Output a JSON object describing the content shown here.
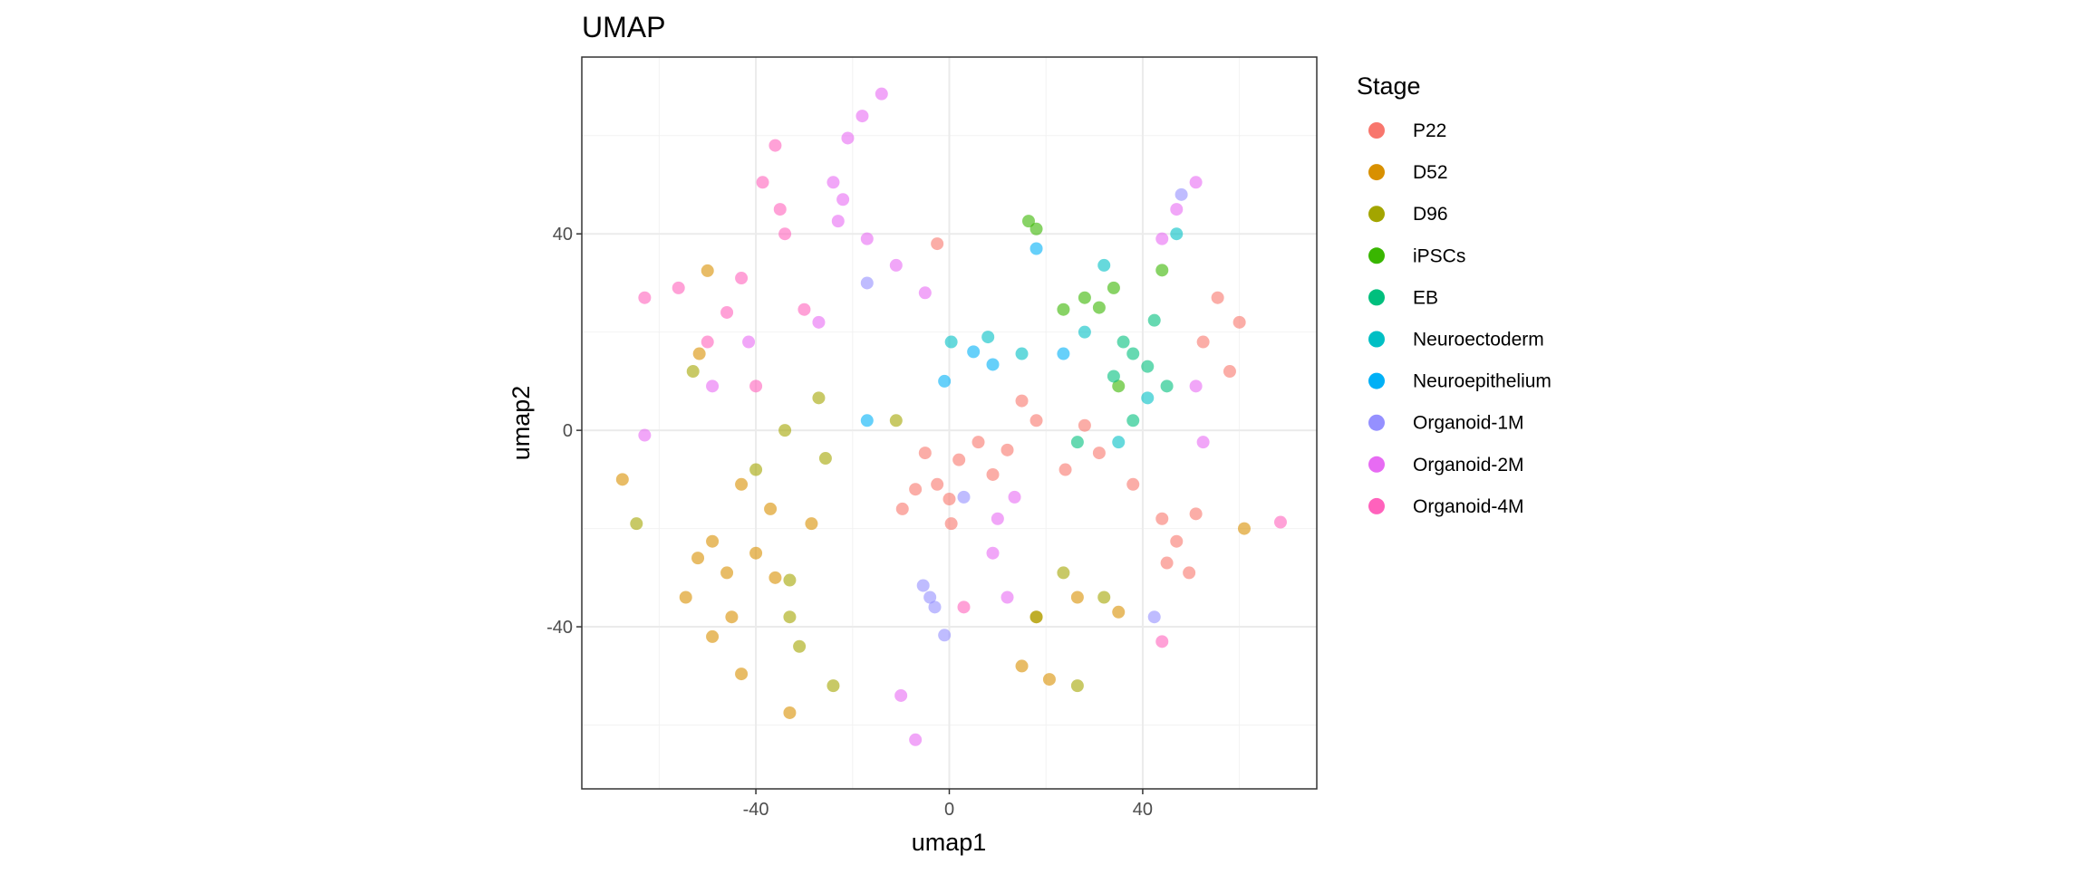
{
  "chart_data": {
    "type": "scatter",
    "title": "UMAP",
    "xlabel": "umap1",
    "ylabel": "umap2",
    "xlim": [
      -76,
      76
    ],
    "ylim": [
      -73,
      76
    ],
    "x_ticks": [
      -40,
      0,
      40
    ],
    "y_ticks": [
      -40,
      0,
      40
    ],
    "x_tick_labels": [
      "-40",
      "0",
      "40"
    ],
    "y_tick_labels": [
      "-40",
      "0",
      "40"
    ],
    "grid": true,
    "legend": {
      "title": "Stage",
      "position": "right"
    },
    "point_alpha": 0.6,
    "series": [
      {
        "name": "P22",
        "color": "#F8766D",
        "points": [
          [
            -2.5,
            -11
          ],
          [
            -5,
            -4.6
          ],
          [
            6,
            -2.4
          ],
          [
            18,
            2
          ],
          [
            31,
            -4.6
          ],
          [
            38,
            -11
          ],
          [
            47,
            -22.6
          ],
          [
            51,
            -17
          ],
          [
            55.5,
            27
          ],
          [
            60,
            22
          ],
          [
            52.5,
            18
          ],
          [
            49.6,
            -29
          ],
          [
            45,
            -27
          ],
          [
            0.4,
            -19
          ],
          [
            -9.7,
            -16
          ],
          [
            9,
            -9
          ],
          [
            -2.5,
            38
          ],
          [
            28,
            1
          ],
          [
            2,
            -6
          ],
          [
            12,
            -4
          ],
          [
            -7,
            -12
          ],
          [
            24,
            -8
          ],
          [
            58,
            12
          ],
          [
            44,
            -18
          ],
          [
            0,
            -14
          ],
          [
            15,
            6
          ]
        ]
      },
      {
        "name": "D52",
        "color": "#D89000",
        "points": [
          [
            -49,
            -22.6
          ],
          [
            -54.5,
            -34
          ],
          [
            -49,
            -42
          ],
          [
            -43,
            -49.6
          ],
          [
            -33,
            -57.5
          ],
          [
            -43,
            -11
          ],
          [
            -37,
            -16
          ],
          [
            -28.5,
            -19
          ],
          [
            -46,
            -29
          ],
          [
            -67.6,
            -10
          ],
          [
            -50,
            32.5
          ],
          [
            -51.7,
            15.6
          ],
          [
            20.7,
            -50.7
          ],
          [
            15,
            -48
          ],
          [
            26.5,
            -34
          ],
          [
            18,
            -38
          ],
          [
            35,
            -37
          ],
          [
            61,
            -20
          ],
          [
            -40,
            -25
          ],
          [
            -52,
            -26
          ],
          [
            -36,
            -30
          ],
          [
            -45,
            -38
          ]
        ]
      },
      {
        "name": "D96",
        "color": "#A3A500",
        "points": [
          [
            -33,
            -38
          ],
          [
            -33,
            -30.5
          ],
          [
            -24,
            -52
          ],
          [
            -25.6,
            -5.7
          ],
          [
            -34,
            0
          ],
          [
            -53,
            12
          ],
          [
            23.6,
            -29
          ],
          [
            18,
            -38
          ],
          [
            26.5,
            -52
          ],
          [
            32,
            -34
          ],
          [
            -64.7,
            -19
          ],
          [
            -27,
            6.6
          ],
          [
            -11,
            2
          ],
          [
            -31,
            -44
          ],
          [
            -40,
            -8
          ]
        ]
      },
      {
        "name": "iPSCs",
        "color": "#39B600",
        "points": [
          [
            16.4,
            42.6
          ],
          [
            28,
            27
          ],
          [
            34,
            29
          ],
          [
            44,
            32.6
          ],
          [
            35,
            9
          ],
          [
            23.6,
            24.6
          ],
          [
            18,
            41
          ],
          [
            31,
            25
          ]
        ]
      },
      {
        "name": "EB",
        "color": "#00BF7D",
        "points": [
          [
            38,
            15.6
          ],
          [
            42.4,
            22.4
          ],
          [
            34,
            11
          ],
          [
            45,
            9
          ],
          [
            38,
            2
          ],
          [
            26.5,
            -2.4
          ],
          [
            36,
            18
          ],
          [
            41,
            13
          ]
        ]
      },
      {
        "name": "Neuroectoderm",
        "color": "#00BFC4",
        "points": [
          [
            32,
            33.6
          ],
          [
            15,
            15.6
          ],
          [
            0.4,
            18
          ],
          [
            35,
            -2.4
          ],
          [
            41,
            6.6
          ],
          [
            47,
            40
          ],
          [
            8,
            19
          ],
          [
            28,
            20
          ]
        ]
      },
      {
        "name": "Neuroepithelium",
        "color": "#00B0F6",
        "points": [
          [
            -1,
            10
          ],
          [
            9,
            13.4
          ],
          [
            18,
            37
          ],
          [
            -17,
            2
          ],
          [
            23.6,
            15.6
          ],
          [
            5,
            16
          ]
        ]
      },
      {
        "name": "Organoid-1M",
        "color": "#9590FF",
        "points": [
          [
            -4,
            -34
          ],
          [
            -5.4,
            -31.6
          ],
          [
            -1,
            -41.7
          ],
          [
            42.4,
            -38
          ],
          [
            48,
            48
          ],
          [
            -17,
            30
          ],
          [
            3,
            -13.6
          ],
          [
            -3,
            -36
          ]
        ]
      },
      {
        "name": "Organoid-2M",
        "color": "#E76BF3",
        "points": [
          [
            -14,
            68.5
          ],
          [
            -21,
            59.5
          ],
          [
            -24,
            50.5
          ],
          [
            -23,
            42.6
          ],
          [
            -17,
            39
          ],
          [
            -11,
            33.6
          ],
          [
            -5,
            28
          ],
          [
            51,
            50.5
          ],
          [
            47,
            45
          ],
          [
            44,
            39
          ],
          [
            13.5,
            -13.6
          ],
          [
            9,
            -25
          ],
          [
            12,
            -34
          ],
          [
            -10,
            -54
          ],
          [
            -7,
            -63
          ],
          [
            -63,
            -1
          ],
          [
            -49,
            9
          ],
          [
            -41.5,
            18
          ],
          [
            -27,
            22
          ],
          [
            51,
            9
          ],
          [
            52.5,
            -2.4
          ],
          [
            -18,
            64
          ],
          [
            -22,
            47
          ],
          [
            10,
            -18
          ]
        ]
      },
      {
        "name": "Organoid-4M",
        "color": "#FF62BC",
        "points": [
          [
            -36,
            58
          ],
          [
            -38.6,
            50.5
          ],
          [
            -34,
            40
          ],
          [
            -63,
            27
          ],
          [
            -56,
            29
          ],
          [
            -43,
            31
          ],
          [
            -30,
            24.6
          ],
          [
            -50,
            18
          ],
          [
            -40,
            9
          ],
          [
            3,
            -36
          ],
          [
            44,
            -43
          ],
          [
            68.5,
            -18.7
          ],
          [
            -35,
            45
          ],
          [
            -46,
            24
          ]
        ]
      }
    ]
  }
}
